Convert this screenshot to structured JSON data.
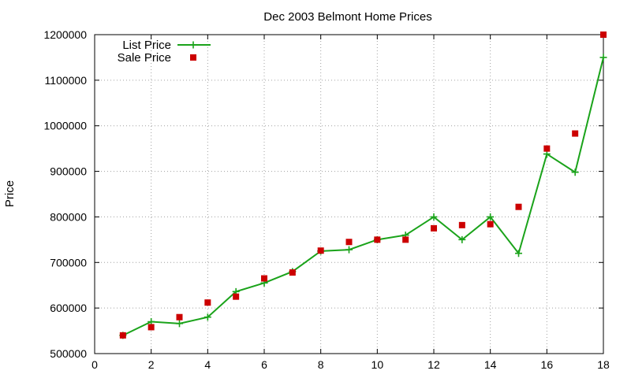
{
  "chart_data": {
    "type": "line",
    "title": "Dec 2003 Belmont Home Prices",
    "xlabel": "",
    "ylabel": "Price",
    "xlim": [
      0,
      18
    ],
    "ylim": [
      500000,
      1200000
    ],
    "x_ticks": [
      "0",
      "2",
      "4",
      "6",
      "8",
      "10",
      "12",
      "14",
      "16",
      "18"
    ],
    "y_ticks": [
      "500000",
      "600000",
      "700000",
      "800000",
      "900000",
      "1000000",
      "1100000",
      "1200000"
    ],
    "grid": true,
    "legend_position": "top-left",
    "series": [
      {
        "name": "List Price",
        "style": "linespoints",
        "color": "#1aa31a",
        "marker": "plus",
        "x": [
          1,
          2,
          3,
          4,
          5,
          6,
          7,
          8,
          9,
          10,
          11,
          12,
          13,
          14,
          15,
          16,
          17,
          18
        ],
        "values": [
          540000,
          570000,
          566000,
          580000,
          636000,
          655000,
          680000,
          725000,
          728000,
          750000,
          760000,
          800000,
          750000,
          800000,
          720000,
          938000,
          898000,
          1150000
        ]
      },
      {
        "name": "Sale Price",
        "style": "points",
        "color": "#cc0000",
        "marker": "square",
        "x": [
          1,
          2,
          3,
          4,
          5,
          6,
          7,
          8,
          9,
          10,
          11,
          12,
          13,
          14,
          15,
          16,
          17,
          18
        ],
        "values": [
          540000,
          558000,
          580000,
          612000,
          625000,
          665000,
          678000,
          726000,
          745000,
          750000,
          750000,
          775000,
          782000,
          784000,
          822000,
          950000,
          983000,
          1200000
        ]
      }
    ]
  }
}
